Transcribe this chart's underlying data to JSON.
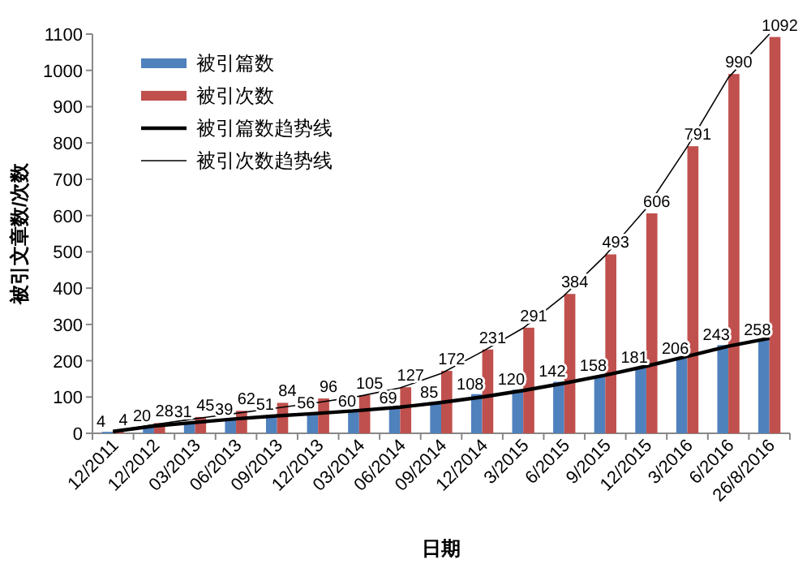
{
  "chart_data": {
    "type": "bar",
    "xlabel": "日期",
    "ylabel": "被引文章数/次数",
    "categories": [
      "12/2011",
      "12/2012",
      "03/2013",
      "06/2013",
      "09/2013",
      "12/2013",
      "03/2014",
      "06/2014",
      "09/2014",
      "12/2014",
      "3/2015",
      "6/2015",
      "9/2015",
      "12/2015",
      "3/2016",
      "6/2016",
      "26/8/2016"
    ],
    "series": [
      {
        "name": "被引篇数",
        "color": "#4f81bd",
        "values": [
          4,
          20,
          31,
          39,
          51,
          56,
          60,
          69,
          85,
          108,
          120,
          142,
          158,
          181,
          206,
          243,
          258
        ],
        "value_labels": [
          "4",
          "20",
          "31",
          "39",
          "51",
          "56",
          "60",
          "69",
          "85",
          "108",
          "120",
          "142",
          "158",
          "181",
          "206",
          "243",
          "258"
        ]
      },
      {
        "name": "被引次数",
        "color": "#c0504d",
        "values": [
          4,
          28,
          45,
          62,
          84,
          96,
          105,
          127,
          172,
          231,
          291,
          384,
          493,
          606,
          791,
          990,
          1092
        ],
        "value_labels": [
          "4",
          "28",
          "45",
          "62",
          "84",
          "96",
          "105",
          "127",
          "172",
          "231",
          "291",
          "384",
          "493",
          "606",
          "791",
          "990",
          "1092"
        ]
      },
      {
        "name": "被引篇数趋势线",
        "type": "line",
        "color": "#000000",
        "values": [
          5,
          20,
          30,
          40,
          48,
          55,
          63,
          72,
          85,
          100,
          118,
          138,
          160,
          185,
          212,
          240,
          262
        ]
      },
      {
        "name": "被引次数趋势线",
        "type": "line",
        "color": "#000000",
        "values": [
          5,
          24,
          40,
          55,
          70,
          85,
          102,
          125,
          165,
          225,
          290,
          380,
          490,
          620,
          790,
          980,
          1100
        ]
      }
    ],
    "ylim": [
      0,
      1100
    ],
    "yticks": [
      0,
      100,
      200,
      300,
      400,
      500,
      600,
      700,
      800,
      900,
      1000,
      1100
    ],
    "grid": false,
    "legend": "top left"
  }
}
